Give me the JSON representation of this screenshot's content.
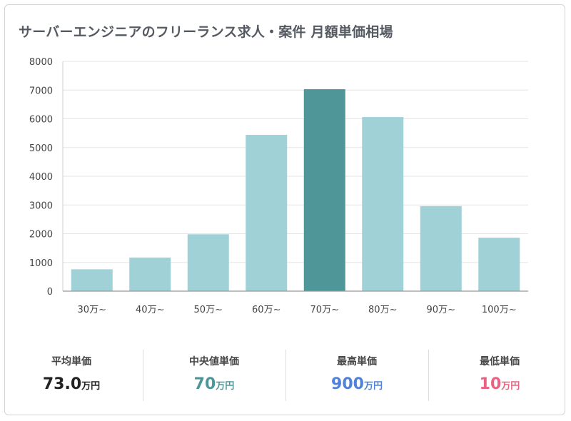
{
  "title": "サーバーエンジニアのフリーランス求人・案件 月額単価相場",
  "chart_data": {
    "type": "bar",
    "categories": [
      "30万~",
      "40万~",
      "50万~",
      "60万~",
      "70万~",
      "80万~",
      "90万~",
      "100万~"
    ],
    "values": [
      760,
      1170,
      1980,
      5440,
      7030,
      6060,
      2960,
      1860
    ],
    "highlight_index": 4,
    "ylim": [
      0,
      8000
    ],
    "yticks": [
      0,
      1000,
      2000,
      3000,
      4000,
      5000,
      6000,
      7000,
      8000
    ],
    "xlabel": "",
    "ylabel": "",
    "grid": true,
    "colors": {
      "bar": "#9fd1d6",
      "highlight": "#4f9699",
      "grid": "#e6e6e6",
      "axis": "#999999",
      "tick_text": "#444444"
    }
  },
  "stats": [
    {
      "label": "平均単価",
      "value": "73.0",
      "unit": "万円",
      "color": "#222222"
    },
    {
      "label": "中央値単価",
      "value": "70",
      "unit": "万円",
      "color": "#4f9699"
    },
    {
      "label": "最高単価",
      "value": "900",
      "unit": "万円",
      "color": "#4f82d8"
    },
    {
      "label": "最低単価",
      "value": "10",
      "unit": "万円",
      "color": "#e8637f"
    }
  ]
}
